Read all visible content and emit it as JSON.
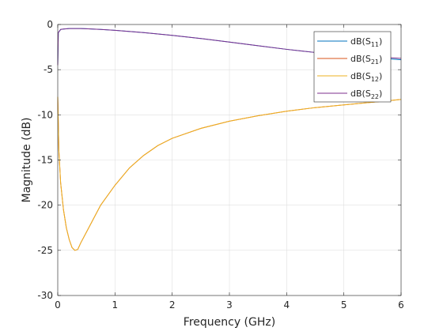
{
  "chart_data": {
    "type": "line",
    "title": "",
    "xlabel": "Frequency (GHz)",
    "ylabel": "Magnitude (dB)",
    "xlim": [
      0,
      6
    ],
    "ylim": [
      -30,
      0
    ],
    "xticks": [
      0,
      1,
      2,
      3,
      4,
      5,
      6
    ],
    "yticks": [
      -30,
      -25,
      -20,
      -15,
      -10,
      -5,
      0
    ],
    "grid": true,
    "legend_position": "top-right",
    "series": [
      {
        "name": "dB(S11)",
        "legend_base": "dB(S",
        "legend_sub": "11",
        "legend_close": ")",
        "color": "#0072BD",
        "x": [
          0,
          0.01,
          0.05,
          0.1,
          0.2,
          0.3,
          0.4,
          0.5,
          0.75,
          1,
          1.5,
          2,
          2.5,
          3,
          3.5,
          4,
          4.5,
          5,
          5.5,
          6
        ],
        "y": [
          -4.5,
          -0.9,
          -0.55,
          -0.5,
          -0.45,
          -0.45,
          -0.45,
          -0.47,
          -0.55,
          -0.65,
          -0.9,
          -1.2,
          -1.55,
          -1.95,
          -2.35,
          -2.75,
          -3.1,
          -3.4,
          -3.65,
          -3.9
        ]
      },
      {
        "name": "dB(S21)",
        "legend_base": "dB(S",
        "legend_sub": "21",
        "legend_close": ")",
        "color": "#D95319",
        "x": [
          0,
          0.02,
          0.05,
          0.1,
          0.15,
          0.2,
          0.25,
          0.3,
          0.35,
          0.4,
          0.5,
          0.6,
          0.75,
          1,
          1.25,
          1.5,
          1.75,
          2,
          2.5,
          3,
          3.5,
          4,
          4.5,
          5,
          5.5,
          6
        ],
        "y": [
          -8,
          -14,
          -17.5,
          -20.5,
          -22.5,
          -23.8,
          -24.7,
          -25,
          -24.9,
          -24.2,
          -23,
          -21.8,
          -20,
          -17.8,
          -15.9,
          -14.5,
          -13.4,
          -12.6,
          -11.5,
          -10.7,
          -10.1,
          -9.6,
          -9.2,
          -8.9,
          -8.6,
          -8.3
        ]
      },
      {
        "name": "dB(S12)",
        "legend_base": "dB(S",
        "legend_sub": "12",
        "legend_close": ")",
        "color": "#EDB120",
        "x": [
          0,
          0.02,
          0.05,
          0.1,
          0.15,
          0.2,
          0.25,
          0.3,
          0.35,
          0.4,
          0.5,
          0.6,
          0.75,
          1,
          1.25,
          1.5,
          1.75,
          2,
          2.5,
          3,
          3.5,
          4,
          4.5,
          5,
          5.5,
          6
        ],
        "y": [
          -8,
          -14,
          -17.5,
          -20.5,
          -22.5,
          -23.8,
          -24.7,
          -25,
          -24.9,
          -24.2,
          -23,
          -21.8,
          -20,
          -17.8,
          -15.9,
          -14.5,
          -13.4,
          -12.6,
          -11.5,
          -10.7,
          -10.1,
          -9.6,
          -9.2,
          -8.9,
          -8.6,
          -8.3
        ]
      },
      {
        "name": "dB(S22)",
        "legend_base": "dB(S",
        "legend_sub": "22",
        "legend_close": ")",
        "color": "#7E2F8E",
        "x": [
          0,
          0.01,
          0.05,
          0.1,
          0.2,
          0.3,
          0.4,
          0.5,
          0.75,
          1,
          1.5,
          2,
          2.5,
          3,
          3.5,
          4,
          4.5,
          5,
          5.5,
          6
        ],
        "y": [
          -4.5,
          -0.9,
          -0.55,
          -0.5,
          -0.45,
          -0.45,
          -0.45,
          -0.47,
          -0.55,
          -0.65,
          -0.9,
          -1.2,
          -1.55,
          -1.95,
          -2.35,
          -2.75,
          -3.1,
          -3.35,
          -3.55,
          -3.75
        ]
      }
    ]
  }
}
